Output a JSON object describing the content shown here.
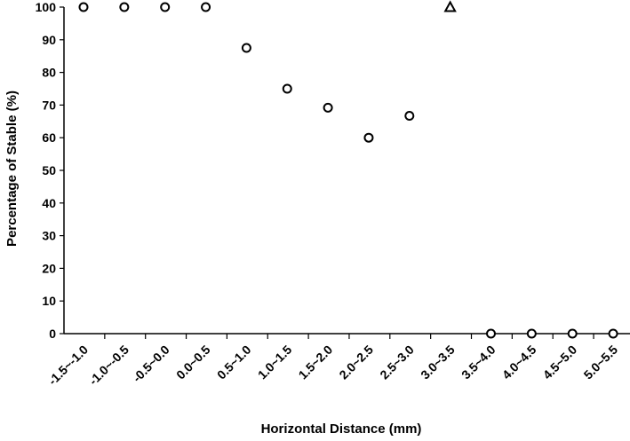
{
  "chart_data": {
    "type": "scatter",
    "title": "",
    "xlabel": "Horizontal Distance (mm)",
    "ylabel": "Percentage of Stable (%)",
    "ylim": [
      0,
      100
    ],
    "yticks": [
      0,
      10,
      20,
      30,
      40,
      50,
      60,
      70,
      80,
      90,
      100
    ],
    "grid": false,
    "legend": "none",
    "categories": [
      "-1.5~-1.0",
      "-1.0~-0.5",
      "-0.5~0.0",
      "0.0~0.5",
      "0.5~1.0",
      "1.0~1.5",
      "1.5~2.0",
      "2.0~2.5",
      "2.5~3.0",
      "3.0~3.5",
      "3.5~4.0",
      "4.0~4.5",
      "4.5~5.0",
      "5.0~5.5"
    ],
    "series": [
      {
        "marker": "circle",
        "values": [
          100,
          100,
          100,
          100,
          87.5,
          75,
          69.2,
          60,
          66.7,
          null,
          0,
          0,
          0,
          0
        ]
      },
      {
        "marker": "triangle",
        "values": [
          null,
          null,
          null,
          null,
          null,
          null,
          null,
          null,
          null,
          100,
          null,
          null,
          null,
          null
        ]
      }
    ]
  }
}
